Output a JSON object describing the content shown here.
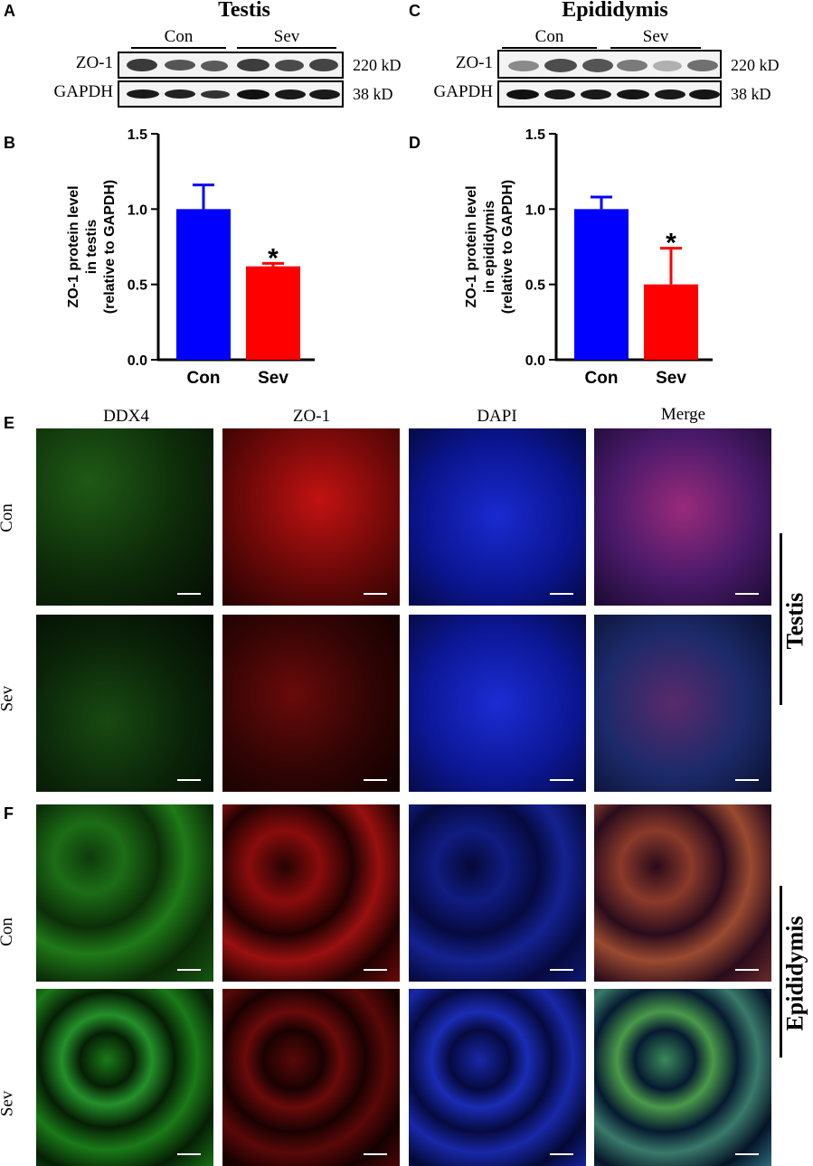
{
  "panels": {
    "A": {
      "letter": "A",
      "title": "Testis",
      "groups": [
        "Con",
        "Sev"
      ],
      "rows": [
        {
          "protein": "ZO-1",
          "kd": "220 kD"
        },
        {
          "protein": "GAPDH",
          "kd": "38 kD"
        }
      ]
    },
    "C": {
      "letter": "C",
      "title": "Epididymis",
      "groups": [
        "Con",
        "Sev"
      ],
      "rows": [
        {
          "protein": "ZO-1",
          "kd": "220 kD"
        },
        {
          "protein": "GAPDH",
          "kd": "38 kD"
        }
      ]
    },
    "B": {
      "letter": "B"
    },
    "D": {
      "letter": "D"
    },
    "E": {
      "letter": "E",
      "row_labels": [
        "Con",
        "Sev"
      ],
      "tissue": "Testis"
    },
    "F": {
      "letter": "F",
      "row_labels": [
        "Con",
        "Sev"
      ],
      "tissue": "Epididymis"
    }
  },
  "column_labels": [
    "DDX4",
    "ZO-1",
    "DAPI",
    "Merge"
  ],
  "chart_data": [
    {
      "type": "bar",
      "categories": [
        "Con",
        "Sev"
      ],
      "values": [
        1.0,
        0.62
      ],
      "errors": [
        0.16,
        0.02
      ],
      "significance": [
        "",
        "*"
      ],
      "ylabel_lines": [
        "ZO-1 protein level",
        "in testis",
        "(relative to GAPDH)"
      ],
      "ylim": [
        0,
        1.5
      ],
      "yticks": [
        "0.0",
        "0.5",
        "1.0",
        "1.5"
      ],
      "colors": [
        "#0000ff",
        "#ff0000"
      ]
    },
    {
      "type": "bar",
      "categories": [
        "Con",
        "Sev"
      ],
      "values": [
        1.0,
        0.5
      ],
      "errors": [
        0.08,
        0.24
      ],
      "significance": [
        "",
        "*"
      ],
      "ylabel_lines": [
        "ZO-1 protein level",
        "in epididymis",
        "(relative to GAPDH)"
      ],
      "ylim": [
        0,
        1.5
      ],
      "yticks": [
        "0.0",
        "0.5",
        "1.0",
        "1.5"
      ],
      "colors": [
        "#0000ff",
        "#ff0000"
      ]
    }
  ]
}
